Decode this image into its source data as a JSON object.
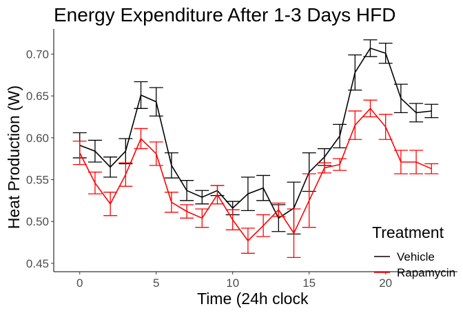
{
  "chart_data": {
    "type": "line",
    "title": "Energy Expenditure After 1-3 Days HFD",
    "xlabel": "Time (24h clock",
    "ylabel": "Heat Production (W)",
    "xlim": [
      -1.7,
      24.7
    ],
    "ylim": [
      0.44,
      0.73
    ],
    "x_ticks": [
      0,
      5,
      10,
      15,
      20
    ],
    "x_tick_labels": [
      "0",
      "5",
      "10",
      "15",
      "20"
    ],
    "y_ticks": [
      0.45,
      0.5,
      0.55,
      0.6,
      0.65,
      0.7
    ],
    "y_tick_labels": [
      "0.45",
      "0.50",
      "0.55",
      "0.60",
      "0.65",
      "0.70"
    ],
    "grid": false,
    "legend": {
      "title": "Treatment",
      "position": "right"
    },
    "x": [
      0,
      1,
      2,
      3,
      4,
      5,
      6,
      7,
      8,
      9,
      10,
      11,
      12,
      13,
      14,
      15,
      16,
      17,
      18,
      19,
      20,
      21,
      22,
      23
    ],
    "series": [
      {
        "name": "Vehicle",
        "color": "#000000",
        "values": [
          0.591,
          0.584,
          0.565,
          0.584,
          0.651,
          0.643,
          0.567,
          0.537,
          0.529,
          0.537,
          0.516,
          0.533,
          0.54,
          0.504,
          0.516,
          0.559,
          0.577,
          0.602,
          0.678,
          0.707,
          0.701,
          0.647,
          0.63,
          0.632
        ],
        "err": [
          0.015,
          0.013,
          0.012,
          0.015,
          0.016,
          0.017,
          0.015,
          0.012,
          0.008,
          0.006,
          0.008,
          0.02,
          0.015,
          0.016,
          0.031,
          0.023,
          0.01,
          0.014,
          0.021,
          0.01,
          0.012,
          0.017,
          0.011,
          0.008
        ]
      },
      {
        "name": "Rapamycin",
        "color": "#ff0000",
        "values": [
          0.582,
          0.546,
          0.521,
          0.556,
          0.599,
          0.581,
          0.523,
          0.512,
          0.504,
          0.532,
          0.502,
          0.477,
          0.495,
          0.514,
          0.486,
          0.525,
          0.564,
          0.568,
          0.615,
          0.635,
          0.613,
          0.571,
          0.571,
          0.563
        ],
        "err": [
          0.014,
          0.013,
          0.014,
          0.014,
          0.012,
          0.014,
          0.012,
          0.008,
          0.011,
          0.011,
          0.012,
          0.015,
          0.013,
          0.008,
          0.029,
          0.032,
          0.006,
          0.007,
          0.017,
          0.01,
          0.015,
          0.014,
          0.014,
          0.006
        ]
      }
    ]
  }
}
